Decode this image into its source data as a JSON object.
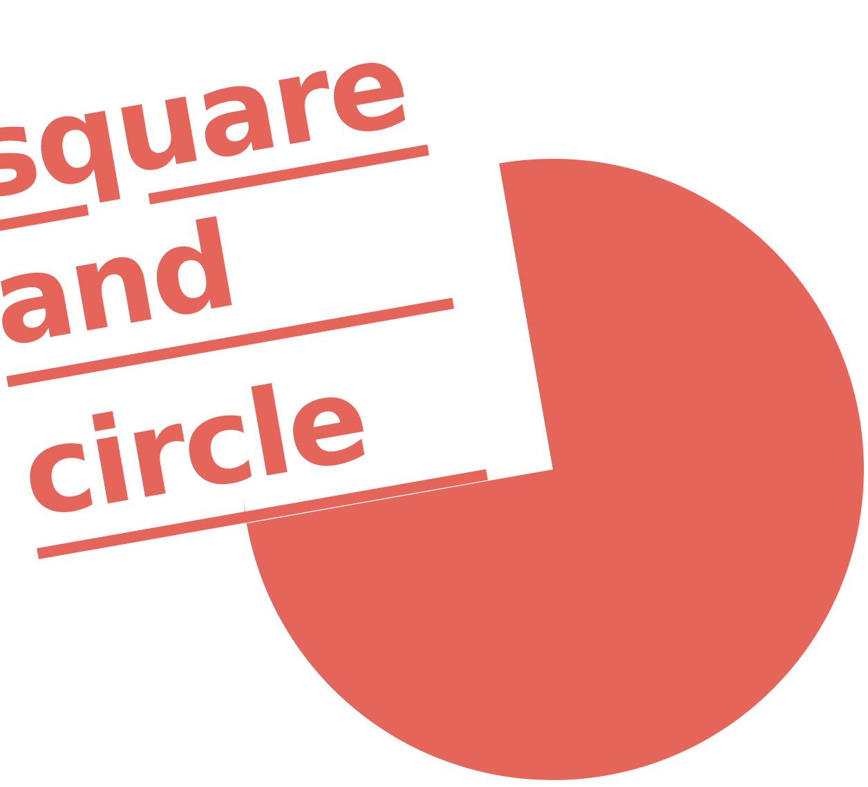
{
  "logo": {
    "lines": [
      "square",
      "and",
      "circle"
    ],
    "colors": {
      "brand": "#E6655A",
      "background": "#FFFFFF"
    }
  }
}
